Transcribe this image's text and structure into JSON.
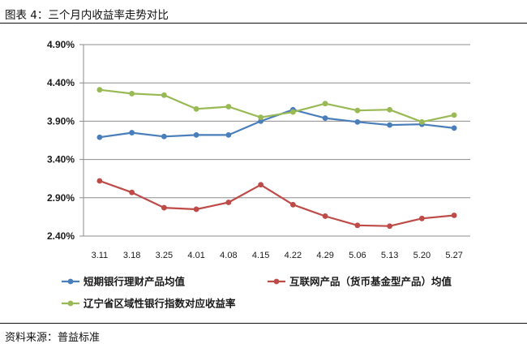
{
  "figure": {
    "title": "图表 4：三个月内收益率走势对比",
    "source": "资料来源：普益标准"
  },
  "chart_data": {
    "type": "line",
    "categories": [
      "3.11",
      "3.18",
      "3.25",
      "4.01",
      "4.08",
      "4.15",
      "4.22",
      "4.29",
      "5.06",
      "5.13",
      "5.20",
      "5.27"
    ],
    "ylim": [
      2.4,
      4.9
    ],
    "yticks": [
      "2.40%",
      "2.90%",
      "3.40%",
      "3.90%",
      "4.40%",
      "4.90%"
    ],
    "ytick_values": [
      2.4,
      2.9,
      3.4,
      3.9,
      4.4,
      4.9
    ],
    "grid": "horizontal",
    "legend_position": "bottom",
    "series": [
      {
        "name": "短期银行理财产品均值",
        "color": "#4a7ebb",
        "values": [
          3.69,
          3.75,
          3.7,
          3.72,
          3.72,
          3.9,
          4.05,
          3.94,
          3.89,
          3.85,
          3.86,
          3.81
        ]
      },
      {
        "name": "互联网产品（货币基金型产品）均值",
        "color": "#be4b48",
        "values": [
          3.12,
          2.97,
          2.77,
          2.75,
          2.84,
          3.07,
          2.81,
          2.66,
          2.54,
          2.53,
          2.63,
          2.67
        ]
      },
      {
        "name": "辽宁省区域性银行指数对应收益率",
        "color": "#98b954",
        "values": [
          4.31,
          4.26,
          4.24,
          4.06,
          4.09,
          3.95,
          4.02,
          4.13,
          4.04,
          4.05,
          3.89,
          3.98
        ]
      }
    ]
  }
}
